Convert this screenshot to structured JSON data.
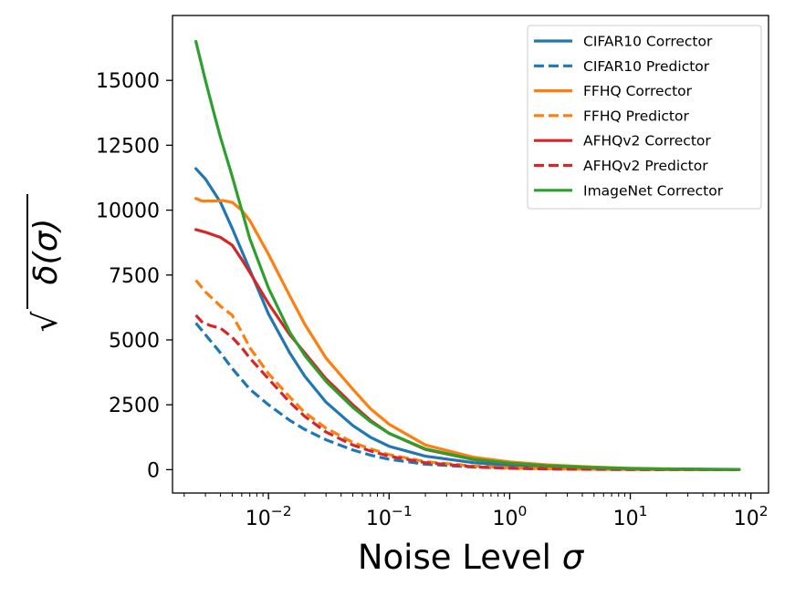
{
  "chart_data": {
    "type": "line",
    "xscale": "log",
    "xlim": [
      0.0016,
      140
    ],
    "ylim": [
      -900,
      17500
    ],
    "xlabel_text": "Noise Level",
    "xlabel_symbol": "σ",
    "ylabel_text": "δ(σ)",
    "ylabel_radical": "√",
    "yticks": [
      0,
      2500,
      5000,
      7500,
      10000,
      12500,
      15000
    ],
    "ytick_labels": [
      "0",
      "2500",
      "5000",
      "7500",
      "10000",
      "12500",
      "15000"
    ],
    "xticks_major": [
      {
        "value": 0.01,
        "base": "10",
        "exp": "−2"
      },
      {
        "value": 0.1,
        "base": "10",
        "exp": "−1"
      },
      {
        "value": 1,
        "base": "10",
        "exp": "0"
      },
      {
        "value": 10,
        "base": "10",
        "exp": "1"
      },
      {
        "value": 100,
        "base": "10",
        "exp": "2"
      }
    ],
    "legend_position": "top-right",
    "series": [
      {
        "name": "CIFAR10 Corrector",
        "color": "#1f77b4",
        "dash": "solid",
        "x": [
          0.0025,
          0.003,
          0.004,
          0.005,
          0.007,
          0.01,
          0.015,
          0.02,
          0.03,
          0.05,
          0.07,
          0.1,
          0.2,
          0.5,
          1,
          2,
          5,
          10,
          20,
          50,
          80
        ],
        "y": [
          11600,
          11200,
          10300,
          9300,
          7700,
          6000,
          4500,
          3600,
          2600,
          1700,
          1250,
          900,
          520,
          270,
          160,
          95,
          45,
          25,
          15,
          8,
          5
        ]
      },
      {
        "name": "CIFAR10 Predictor",
        "color": "#1f77b4",
        "dash": "dashed",
        "x": [
          0.0025,
          0.003,
          0.004,
          0.005,
          0.007,
          0.01,
          0.015,
          0.02,
          0.03,
          0.05,
          0.07,
          0.1,
          0.2,
          0.5,
          1,
          2,
          5,
          10,
          20,
          50,
          80
        ],
        "y": [
          5650,
          5200,
          4500,
          3900,
          3100,
          2500,
          1900,
          1550,
          1150,
          760,
          560,
          400,
          210,
          100,
          55,
          30,
          15,
          8,
          4,
          2,
          1
        ]
      },
      {
        "name": "FFHQ Corrector",
        "color": "#ff7f0e",
        "dash": "solid",
        "x": [
          0.0025,
          0.0028,
          0.0035,
          0.0042,
          0.005,
          0.006,
          0.007,
          0.01,
          0.015,
          0.02,
          0.03,
          0.05,
          0.07,
          0.1,
          0.2,
          0.5,
          1,
          2,
          5,
          10,
          20,
          50,
          80
        ],
        "y": [
          10450,
          10350,
          10350,
          10370,
          10300,
          10000,
          9600,
          8300,
          6700,
          5600,
          4300,
          3100,
          2350,
          1750,
          950,
          480,
          300,
          190,
          100,
          55,
          30,
          15,
          10
        ]
      },
      {
        "name": "FFHQ Predictor",
        "color": "#ff7f0e",
        "dash": "dashed",
        "x": [
          0.0025,
          0.003,
          0.004,
          0.005,
          0.006,
          0.007,
          0.01,
          0.015,
          0.02,
          0.03,
          0.05,
          0.07,
          0.1,
          0.2,
          0.5,
          1,
          2,
          5,
          10,
          20,
          50,
          80
        ],
        "y": [
          7300,
          6850,
          6300,
          5950,
          5300,
          4700,
          3700,
          2800,
          2200,
          1600,
          1050,
          800,
          580,
          310,
          140,
          75,
          40,
          18,
          9,
          5,
          2,
          1
        ]
      },
      {
        "name": "AFHQv2 Corrector",
        "color": "#d62728",
        "dash": "solid",
        "x": [
          0.0025,
          0.003,
          0.004,
          0.005,
          0.006,
          0.007,
          0.01,
          0.015,
          0.02,
          0.03,
          0.05,
          0.07,
          0.1,
          0.2,
          0.5,
          1,
          2,
          5,
          10,
          20,
          50,
          80
        ],
        "y": [
          9250,
          9150,
          8950,
          8650,
          8100,
          7600,
          6400,
          5200,
          4500,
          3500,
          2500,
          1900,
          1400,
          780,
          390,
          240,
          150,
          75,
          40,
          22,
          10,
          7
        ]
      },
      {
        "name": "AFHQv2 Predictor",
        "color": "#d62728",
        "dash": "dashed",
        "x": [
          0.0025,
          0.0028,
          0.0033,
          0.004,
          0.005,
          0.006,
          0.007,
          0.01,
          0.015,
          0.02,
          0.03,
          0.05,
          0.07,
          0.1,
          0.2,
          0.5,
          1,
          2,
          5,
          10,
          20,
          50,
          80
        ],
        "y": [
          5950,
          5700,
          5550,
          5450,
          5100,
          4700,
          4300,
          3500,
          2600,
          2050,
          1450,
          950,
          720,
          520,
          270,
          110,
          55,
          28,
          12,
          6,
          3,
          1,
          1
        ]
      },
      {
        "name": "ImageNet Corrector",
        "color": "#2ca02c",
        "dash": "solid",
        "x": [
          0.0025,
          0.003,
          0.0035,
          0.004,
          0.005,
          0.006,
          0.007,
          0.01,
          0.015,
          0.02,
          0.03,
          0.05,
          0.07,
          0.1,
          0.2,
          0.5,
          1,
          2,
          5,
          10,
          20,
          50,
          80
        ],
        "y": [
          16500,
          15000,
          13800,
          12800,
          11300,
          10000,
          8900,
          7000,
          5300,
          4400,
          3400,
          2400,
          1850,
          1400,
          800,
          400,
          250,
          155,
          80,
          45,
          25,
          12,
          8
        ]
      }
    ]
  }
}
